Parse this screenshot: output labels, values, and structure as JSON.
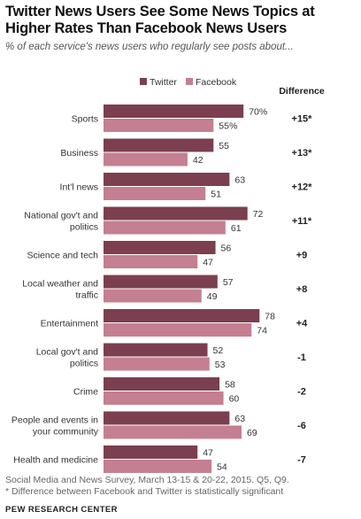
{
  "header": {
    "title": "Twitter News Users See Some News Topics at Higher Rates Than Facebook News Users",
    "subtitle": "% of each service's news users who regularly see posts about..."
  },
  "footer": {
    "source": "Social Media and News Survey, March 13-15 & 20-22, 2015. Q5, Q9.",
    "note": "* Difference between Facebook and Twitter is statistically significant",
    "brand": "PEW RESEARCH CENTER"
  },
  "colors": {
    "twitter": "#7b3f50",
    "facebook": "#c47f91"
  },
  "chart_data": {
    "type": "bar",
    "orientation": "horizontal",
    "difference_header": "Difference",
    "categories": [
      [
        "Sports"
      ],
      [
        "Business"
      ],
      [
        "Int'l news"
      ],
      [
        "National gov't and",
        "politics"
      ],
      [
        "Science and tech"
      ],
      [
        "Local weather and",
        "traffic"
      ],
      [
        "Entertainment"
      ],
      [
        "Local gov't and",
        "politics"
      ],
      [
        "Crime"
      ],
      [
        "People and events in",
        "your community"
      ],
      [
        "Health and medicine"
      ]
    ],
    "series": [
      {
        "name": "Twitter",
        "values": [
          70,
          55,
          63,
          72,
          56,
          57,
          78,
          52,
          58,
          63,
          47
        ]
      },
      {
        "name": "Facebook",
        "values": [
          55,
          42,
          51,
          61,
          47,
          49,
          74,
          53,
          60,
          69,
          54
        ]
      }
    ],
    "value_labels": {
      "Twitter": [
        "70%",
        "55",
        "63",
        "72",
        "56",
        "57",
        "78",
        "52",
        "58",
        "63",
        "47"
      ],
      "Facebook": [
        "55%",
        "42",
        "51",
        "61",
        "47",
        "49",
        "74",
        "53",
        "60",
        "69",
        "54"
      ]
    },
    "differences": [
      "+15*",
      "+13*",
      "+12*",
      "+11*",
      "+9",
      "+8",
      "+4",
      "-1",
      "-2",
      "-6",
      "-7"
    ],
    "legend_position": "top",
    "grid": false
  }
}
